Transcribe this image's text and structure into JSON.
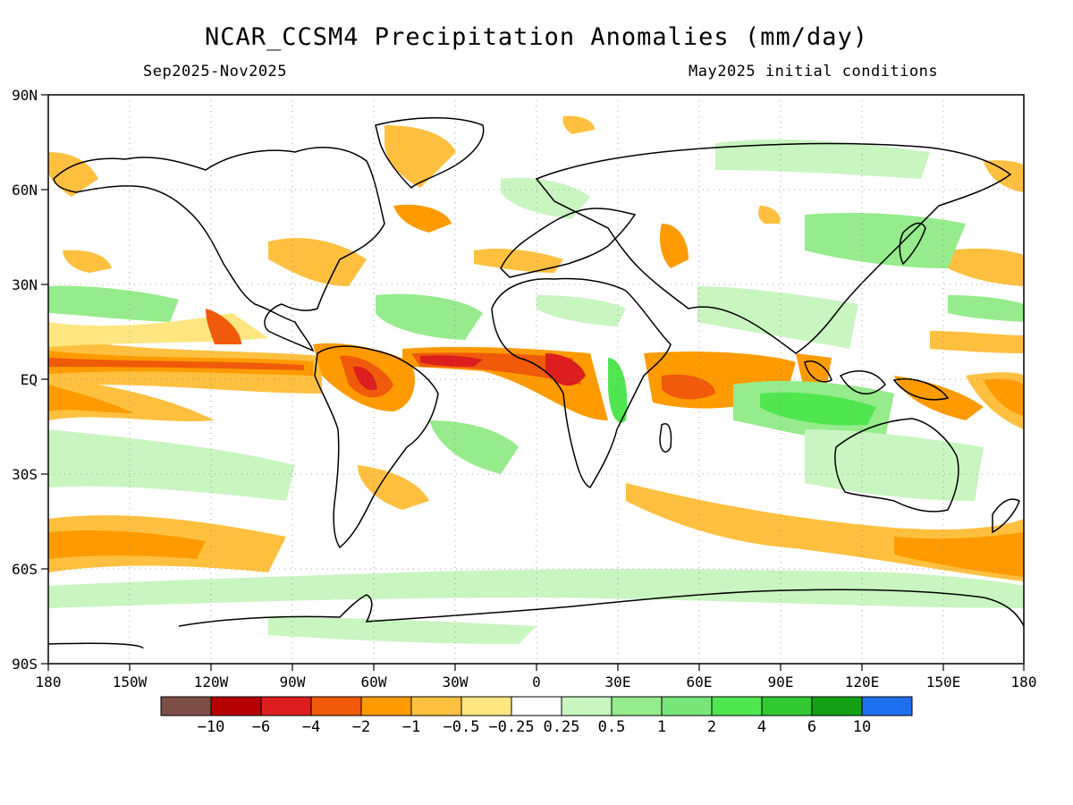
{
  "title": "NCAR_CCSM4 Precipitation Anomalies (mm/day)",
  "period": "Sep2025-Nov2025",
  "init": "May2025 initial conditions",
  "lat_labels": [
    "90N",
    "60N",
    "30N",
    "EQ",
    "30S",
    "60S",
    "90S"
  ],
  "lon_labels": [
    "180",
    "150W",
    "120W",
    "90W",
    "60W",
    "30W",
    "0",
    "30E",
    "60E",
    "90E",
    "120E",
    "150E",
    "180"
  ],
  "legend": {
    "colors": [
      "#7b4f46",
      "#b40000",
      "#dc1e1e",
      "#f05a0a",
      "#ff9b00",
      "#ffc040",
      "#ffe680",
      "#ffffff",
      "#c8f5c0",
      "#96eb8c",
      "#78e678",
      "#50e650",
      "#32c832",
      "#14a014",
      "#1e6ef0"
    ],
    "labels": [
      "−10",
      "−6",
      "−4",
      "−2",
      "−1",
      "−0.5",
      "−0.25",
      "0.25",
      "0.5",
      "1",
      "2",
      "4",
      "6",
      "10"
    ]
  }
}
